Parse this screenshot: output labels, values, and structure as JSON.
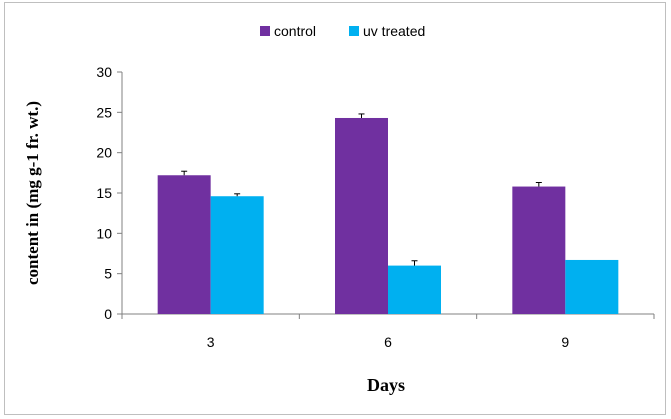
{
  "chart_data": {
    "type": "bar",
    "title": "",
    "xlabel": "Days",
    "ylabel": "content in (mg g-1 fr. wt.)",
    "categories": [
      "3",
      "6",
      "9"
    ],
    "ylim": [
      0,
      30
    ],
    "yticks": [
      "0",
      "5",
      "10",
      "15",
      "20",
      "25",
      "30"
    ],
    "grid": false,
    "legend_position": "top-center",
    "series": [
      {
        "name": "control",
        "color": "#7030a0",
        "values": [
          17.2,
          24.3,
          15.8
        ],
        "errors": [
          0.5,
          0.5,
          0.5
        ]
      },
      {
        "name": "uv treated",
        "color": "#00b0f0",
        "values": [
          14.6,
          6.0,
          6.7
        ],
        "errors": [
          0.3,
          0.6,
          0.0
        ]
      }
    ]
  }
}
